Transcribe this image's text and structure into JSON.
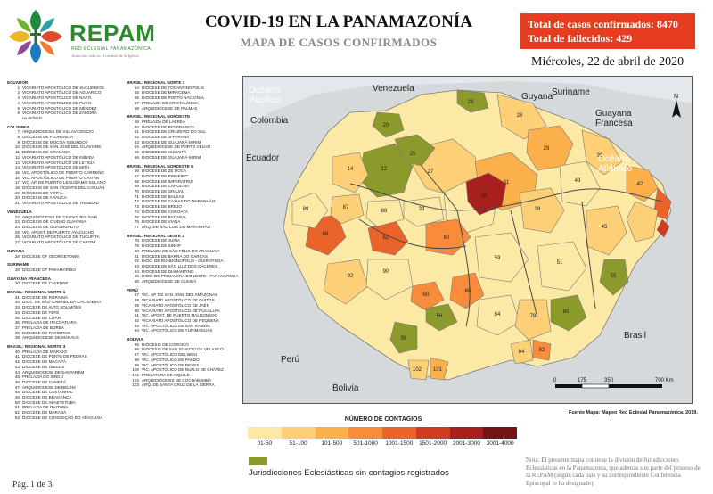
{
  "header": {
    "brand": "REPAM",
    "brand_sub": "RED ECLESIAL PANAMAZÓNICA",
    "brand_tag": "Jesucristo vida en el corazón de la Iglesia",
    "title": "COVID-19 EN LA PANAMAZONÍA",
    "subtitle": "MAPA DE CASOS CONFIRMADOS",
    "total_cases": "Total de casos confirmados: 8470",
    "total_deaths": "Total de fallecidos: 429",
    "date": "Miércoles, 22 de abril de 2020"
  },
  "map": {
    "labels": {
      "pacific": "Océano\nPacífico",
      "atlantic": "Océano\nAtlántico",
      "venezuela": "Venezuela",
      "colombia": "Colombia",
      "ecuador": "Ecuador",
      "guyana": "Guyana",
      "suriname": "Suriname",
      "guyana_fr": "Guayana\nFrancesa",
      "peru": "Perú",
      "bolivia": "Bolivia",
      "brasil": "Brasil"
    },
    "scale_labels": [
      "0",
      "175",
      "350",
      "700 Km"
    ],
    "lon_labels": [
      "75°0'0\"W",
      "70°0'0\"W",
      "65°0'0\"W",
      "60°0'0\"W",
      "55°0'0\"W",
      "50°0'0\"W",
      "45°0'0\"W"
    ],
    "lat_labels": [
      "5°0'0\"N",
      "0°0'0\"",
      "5°0'0\"S",
      "10°0'0\"S"
    ],
    "north": "N"
  },
  "legend": {
    "title": "NÚMERO DE CONTAGIOS",
    "classes": [
      {
        "label": "01-50",
        "color": "#fde9a6"
      },
      {
        "label": "51-100",
        "color": "#fdd077"
      },
      {
        "label": "101-500",
        "color": "#fbb04c"
      },
      {
        "label": "501-1000",
        "color": "#f88c3a"
      },
      {
        "label": "1001-1500",
        "color": "#e9632b"
      },
      {
        "label": "1501-2000",
        "color": "#cf3c22"
      },
      {
        "label": "2001-3000",
        "color": "#a8201e"
      },
      {
        "label": "3001-4000",
        "color": "#751318"
      }
    ],
    "nodata_color": "#8c9a2c",
    "nodata_label": "Jurisdicciones Eclesiásticas sin contagios registrados"
  },
  "source": "Fuente Mapa: Mapeo Red Eclesial Panamazónica. 2019.",
  "note": "Nota: El presente mapa contiene la división de Jurisdicciones Eclesiásticas en la Panamazonía, que además son parte del proceso de la REPAM (según cada país y su correspondiente Conferencia Episcopal lo ha designado)",
  "page": "Pág. 1 de 3",
  "dioceses": {
    "col1": [
      {
        "h": "ECUADOR"
      },
      {
        "n": "1",
        "t": "VICARIATO APOSTÓLICO DE SUCUMBÍOS"
      },
      {
        "n": "2",
        "t": "VICARIATO APOSTÓLICO DE AGUARICO"
      },
      {
        "n": "3",
        "t": "VICARIATO APOSTÓLICO DE NAPO"
      },
      {
        "n": "4",
        "t": "VICARIATO APOSTÓLICO DE PUYO"
      },
      {
        "n": "5",
        "t": "VICARIATO APOSTÓLICO DE MÉNDEZ"
      },
      {
        "n": "6",
        "t": "VICARIATO APOSTÓLICO DE ZAMORA"
      },
      {
        "n": "",
        "t": "no definido"
      },
      {
        "h": "COLOMBIA"
      },
      {
        "n": "7",
        "t": "ARQUIDIÓCESIS DE VILLAVICENCIO"
      },
      {
        "n": "8",
        "t": "DIÓCESIS DE FLORENCIA"
      },
      {
        "n": "9",
        "t": "DIÓCESIS DE MOCOA-SIBUNDOY"
      },
      {
        "n": "10",
        "t": "DIÓCESIS DE SAN JOSÉ DEL GUAVIARE"
      },
      {
        "n": "11",
        "t": "DIÓCESIS DE GRANADA"
      },
      {
        "n": "12",
        "t": "VICARIATO APOSTÓLICO DE INÍRIDA"
      },
      {
        "n": "13",
        "t": "VICARIATO APOSTÓLICO DE LETICIA"
      },
      {
        "n": "14",
        "t": "VICARIATO APOSTÓLICO DE MITÚ"
      },
      {
        "n": "15",
        "t": "VIC. APOSTÓLICO DE PUERTO CARREÑO"
      },
      {
        "n": "16",
        "t": "VIC. APOSTÓLICO DE PUERTO GAITÁN"
      },
      {
        "n": "17",
        "t": "VIC. AP. DE PUERTO LEGUÍZAMO-SOLANO"
      },
      {
        "n": "18",
        "t": "DIÓCESIS DE SAN VICENTE DEL CAGUÁN"
      },
      {
        "n": "19",
        "t": "DIÓCESIS DE YOPAL"
      },
      {
        "n": "20",
        "t": "DIÓCESIS DE ARAUCA"
      },
      {
        "n": "21",
        "t": "VICARIATO APOSTÓLICO DE TRINIDAD"
      },
      {
        "h": "VENEZUELA"
      },
      {
        "n": "22",
        "t": "ARQUIDIÓCESIS DE CIUDAD BOLÍVAR"
      },
      {
        "n": "23",
        "t": "DIÓCESIS DE CIUDAD GUAYANA"
      },
      {
        "n": "24",
        "t": "DIÓCESIS DE GUASDUALITO"
      },
      {
        "n": "25",
        "t": "VIC. APOST. DE PUERTO AYACUCHO"
      },
      {
        "n": "26",
        "t": "VICARIATO APOSTÓLICO DE TUCUPITA"
      },
      {
        "n": "27",
        "t": "VICARIATO APOSTÓLICO DE CARONÍ"
      },
      {
        "h": "GUYANA"
      },
      {
        "n": "28",
        "t": "DIOCESE OF GEORGETOWN"
      },
      {
        "h": "SURINAME"
      },
      {
        "n": "29",
        "t": "DIOCESE OF PARAMARIBO"
      },
      {
        "h": "GUAYANA FRANCESA"
      },
      {
        "n": "30",
        "t": "DIOCESE DE CAYENNE"
      },
      {
        "h": "BRASIL: REGIONAL NORTE 1"
      },
      {
        "n": "31",
        "t": "DIOCESE DE RORAIMA"
      },
      {
        "n": "32",
        "t": "DIOC. DE SÃO GABRIEL DA CACHOEIRA"
      },
      {
        "n": "33",
        "t": "DIOCESE DE ALTO SOLIMÕES"
      },
      {
        "n": "34",
        "t": "DIOCESE DE TEFÉ"
      },
      {
        "n": "35",
        "t": "DIOCESE DE COARI"
      },
      {
        "n": "36",
        "t": "PRELAZIA DE ITACOATIARA"
      },
      {
        "n": "37",
        "t": "PRELAZIA DE BORBA"
      },
      {
        "n": "38",
        "t": "DIOCESE DE PARINTINS"
      },
      {
        "n": "39",
        "t": "ARQUIDIOCESE DE MANAUS"
      },
      {
        "h": "BRASIL: REGIONAL NORTE 3"
      },
      {
        "n": "40",
        "t": "PRELAZIA DE MARAJÓ"
      },
      {
        "n": "41",
        "t": "DIOCESE DE PONTA DE PEDRAS"
      },
      {
        "n": "42",
        "t": "DIOCESE DE MACAPÁ"
      },
      {
        "n": "43",
        "t": "DIOCESE DE ÓBIDOS"
      },
      {
        "n": "44",
        "t": "ARQUIDIOCESE DE SANTARÉM"
      },
      {
        "n": "45",
        "t": "PRELAZIA DO XINGU"
      },
      {
        "n": "46",
        "t": "DIOCESE DE CAMETÁ"
      },
      {
        "n": "47",
        "t": "ARQUIDIOCESE DE BELÉM"
      },
      {
        "n": "48",
        "t": "DIOCESE DE CASTANHAL"
      },
      {
        "n": "49",
        "t": "DIOCESE DE BRAGANÇA"
      },
      {
        "n": "50",
        "t": "DIOCESE DE ABAETETUBA"
      },
      {
        "n": "51",
        "t": "PRELAZIA DE ITAITUBA"
      },
      {
        "n": "52",
        "t": "DIOCESE DE MARABÁ"
      },
      {
        "n": "53",
        "t": "DIOCESE DE CONCEIÇÃO DO ARAGUAIA"
      }
    ],
    "col2": [
      {
        "h": "BRASIL: REGIONAL NORTE 3"
      },
      {
        "n": "54",
        "t": "DIOCESE DE TOCANTINÓPOLIS"
      },
      {
        "n": "55",
        "t": "DIOCESE DE MIRACEMA"
      },
      {
        "n": "56",
        "t": "DIOCESE DE PORTO NACIONAL"
      },
      {
        "n": "57",
        "t": "PRELAZIA DE CRISTALÂNDIA"
      },
      {
        "n": "58",
        "t": "ARQUIDIOCESE DE PALMAS"
      },
      {
        "h": "BRASIL: REGIONAL NOROESTE"
      },
      {
        "n": "59",
        "t": "PRELAZIA DE LÁBREA"
      },
      {
        "n": "60",
        "t": "DIOCESE DE RIO BRANCO"
      },
      {
        "n": "61",
        "t": "DIOCESE DE CRUZEIRO DO SUL"
      },
      {
        "n": "62",
        "t": "DIOCESE DE JI-PARANÁ"
      },
      {
        "n": "63",
        "t": "DIOCESE DE GUAJARÁ-MIRIM"
      },
      {
        "n": "64",
        "t": "ARQUIDIOCESE DE PORTO VELHO"
      },
      {
        "n": "65",
        "t": "DIOCESE DE HUMAITÁ"
      },
      {
        "n": "66",
        "t": "DIOCESE DE GUAJARÁ-MIRIM"
      },
      {
        "h": "BRASIL: REGIONAL NORDESTE 5"
      },
      {
        "n": "66",
        "t": "DIOCESE DE ZÉ DOCA"
      },
      {
        "n": "67",
        "t": "DIOCESE DE PINHEIRO"
      },
      {
        "n": "68",
        "t": "DIOCESE DE IMPERATRIZ"
      },
      {
        "n": "69",
        "t": "DIOCESE DE CAROLINA"
      },
      {
        "n": "70",
        "t": "DIOCESE DE GRAJAÚ"
      },
      {
        "n": "71",
        "t": "DIOCESE DE BALSAS"
      },
      {
        "n": "72",
        "t": "DIOCESE DE CAXIAS DO MARANHÃO"
      },
      {
        "n": "73",
        "t": "DIOCESE DE BREJO"
      },
      {
        "n": "74",
        "t": "DIOCESE DE COROATÁ"
      },
      {
        "n": "75",
        "t": "DIOCESE DE BACABAL"
      },
      {
        "n": "76",
        "t": "DIOCESE DE VIANA"
      },
      {
        "n": "77",
        "t": "ARQ. DE SÃO LUIZ DO MARANHÃO"
      },
      {
        "h": "BRASIL: REGIONAL OESTE 2"
      },
      {
        "n": "78",
        "t": "DIOCESE DE JUÍNA"
      },
      {
        "n": "79",
        "t": "DIOCESE DE SINOP"
      },
      {
        "n": "80",
        "t": "PRELAZIA DE SÃO FÉLIX DO ARAGUAIA"
      },
      {
        "n": "81",
        "t": "DIOCESE DE BARRA DO GARÇAS"
      },
      {
        "n": "82",
        "t": "DIOC. DE RONDONÓPOLIS - GUIRATINGA"
      },
      {
        "n": "83",
        "t": "DIOCESE DE SÃO LUIZ DOS CÁCERES"
      },
      {
        "n": "84",
        "t": "DIOCESE DE DIAMANTINO"
      },
      {
        "n": "85",
        "t": "DIOC. DE PRIMAVERA DO LESTE - PARANATINGA"
      },
      {
        "n": "86",
        "t": "ARQUIDIOCESE DE CUIABÁ"
      },
      {
        "h": "PERÚ"
      },
      {
        "n": "87",
        "t": "VIC. AP. DE SAN JOSÉ DEL AMAZONAS"
      },
      {
        "n": "88",
        "t": "VICARIATO APOSTÓLICO DE QUITOS"
      },
      {
        "n": "89",
        "t": "VICARIATO APOSTÓLICO DE JAÉN"
      },
      {
        "n": "90",
        "t": "VICARIATO APOSTÓLICO DE PUCALLPA"
      },
      {
        "n": "91",
        "t": "VIC. APOST. DE PUERTO MALDONADO"
      },
      {
        "n": "92",
        "t": "VICARIATO APOSTÓLICO DE REQUENA"
      },
      {
        "n": "93",
        "t": "VIC. APOSTÓLICO DE SAN RAMÓN"
      },
      {
        "n": "94",
        "t": "VIC. APOSTÓLICO DE YURIMAGUAS"
      },
      {
        "h": "BOLIVIA"
      },
      {
        "n": "95",
        "t": "DIÓCESIS DE COROICO"
      },
      {
        "n": "96",
        "t": "DIÓCESIS DE SAN IGNACIO DE VELASCO"
      },
      {
        "n": "97",
        "t": "VIC. APOSTÓLICO DEL BENI"
      },
      {
        "n": "98",
        "t": "VIC. APOSTÓLICO DE PANDO"
      },
      {
        "n": "99",
        "t": "VIC. APOSTÓLICO DE REYES"
      },
      {
        "n": "100",
        "t": "VIC. APOSTÓLICO DE ÑUFLO DE CHÁVEZ"
      },
      {
        "n": "101",
        "t": "PRELATURA DE AIQUILE"
      },
      {
        "n": "102",
        "t": "ARQUIDIÓCESIS DE COCHABAMBA"
      },
      {
        "n": "103",
        "t": "ARQ. DE SANTA CRUZ DE LA SIERRA"
      }
    ]
  }
}
